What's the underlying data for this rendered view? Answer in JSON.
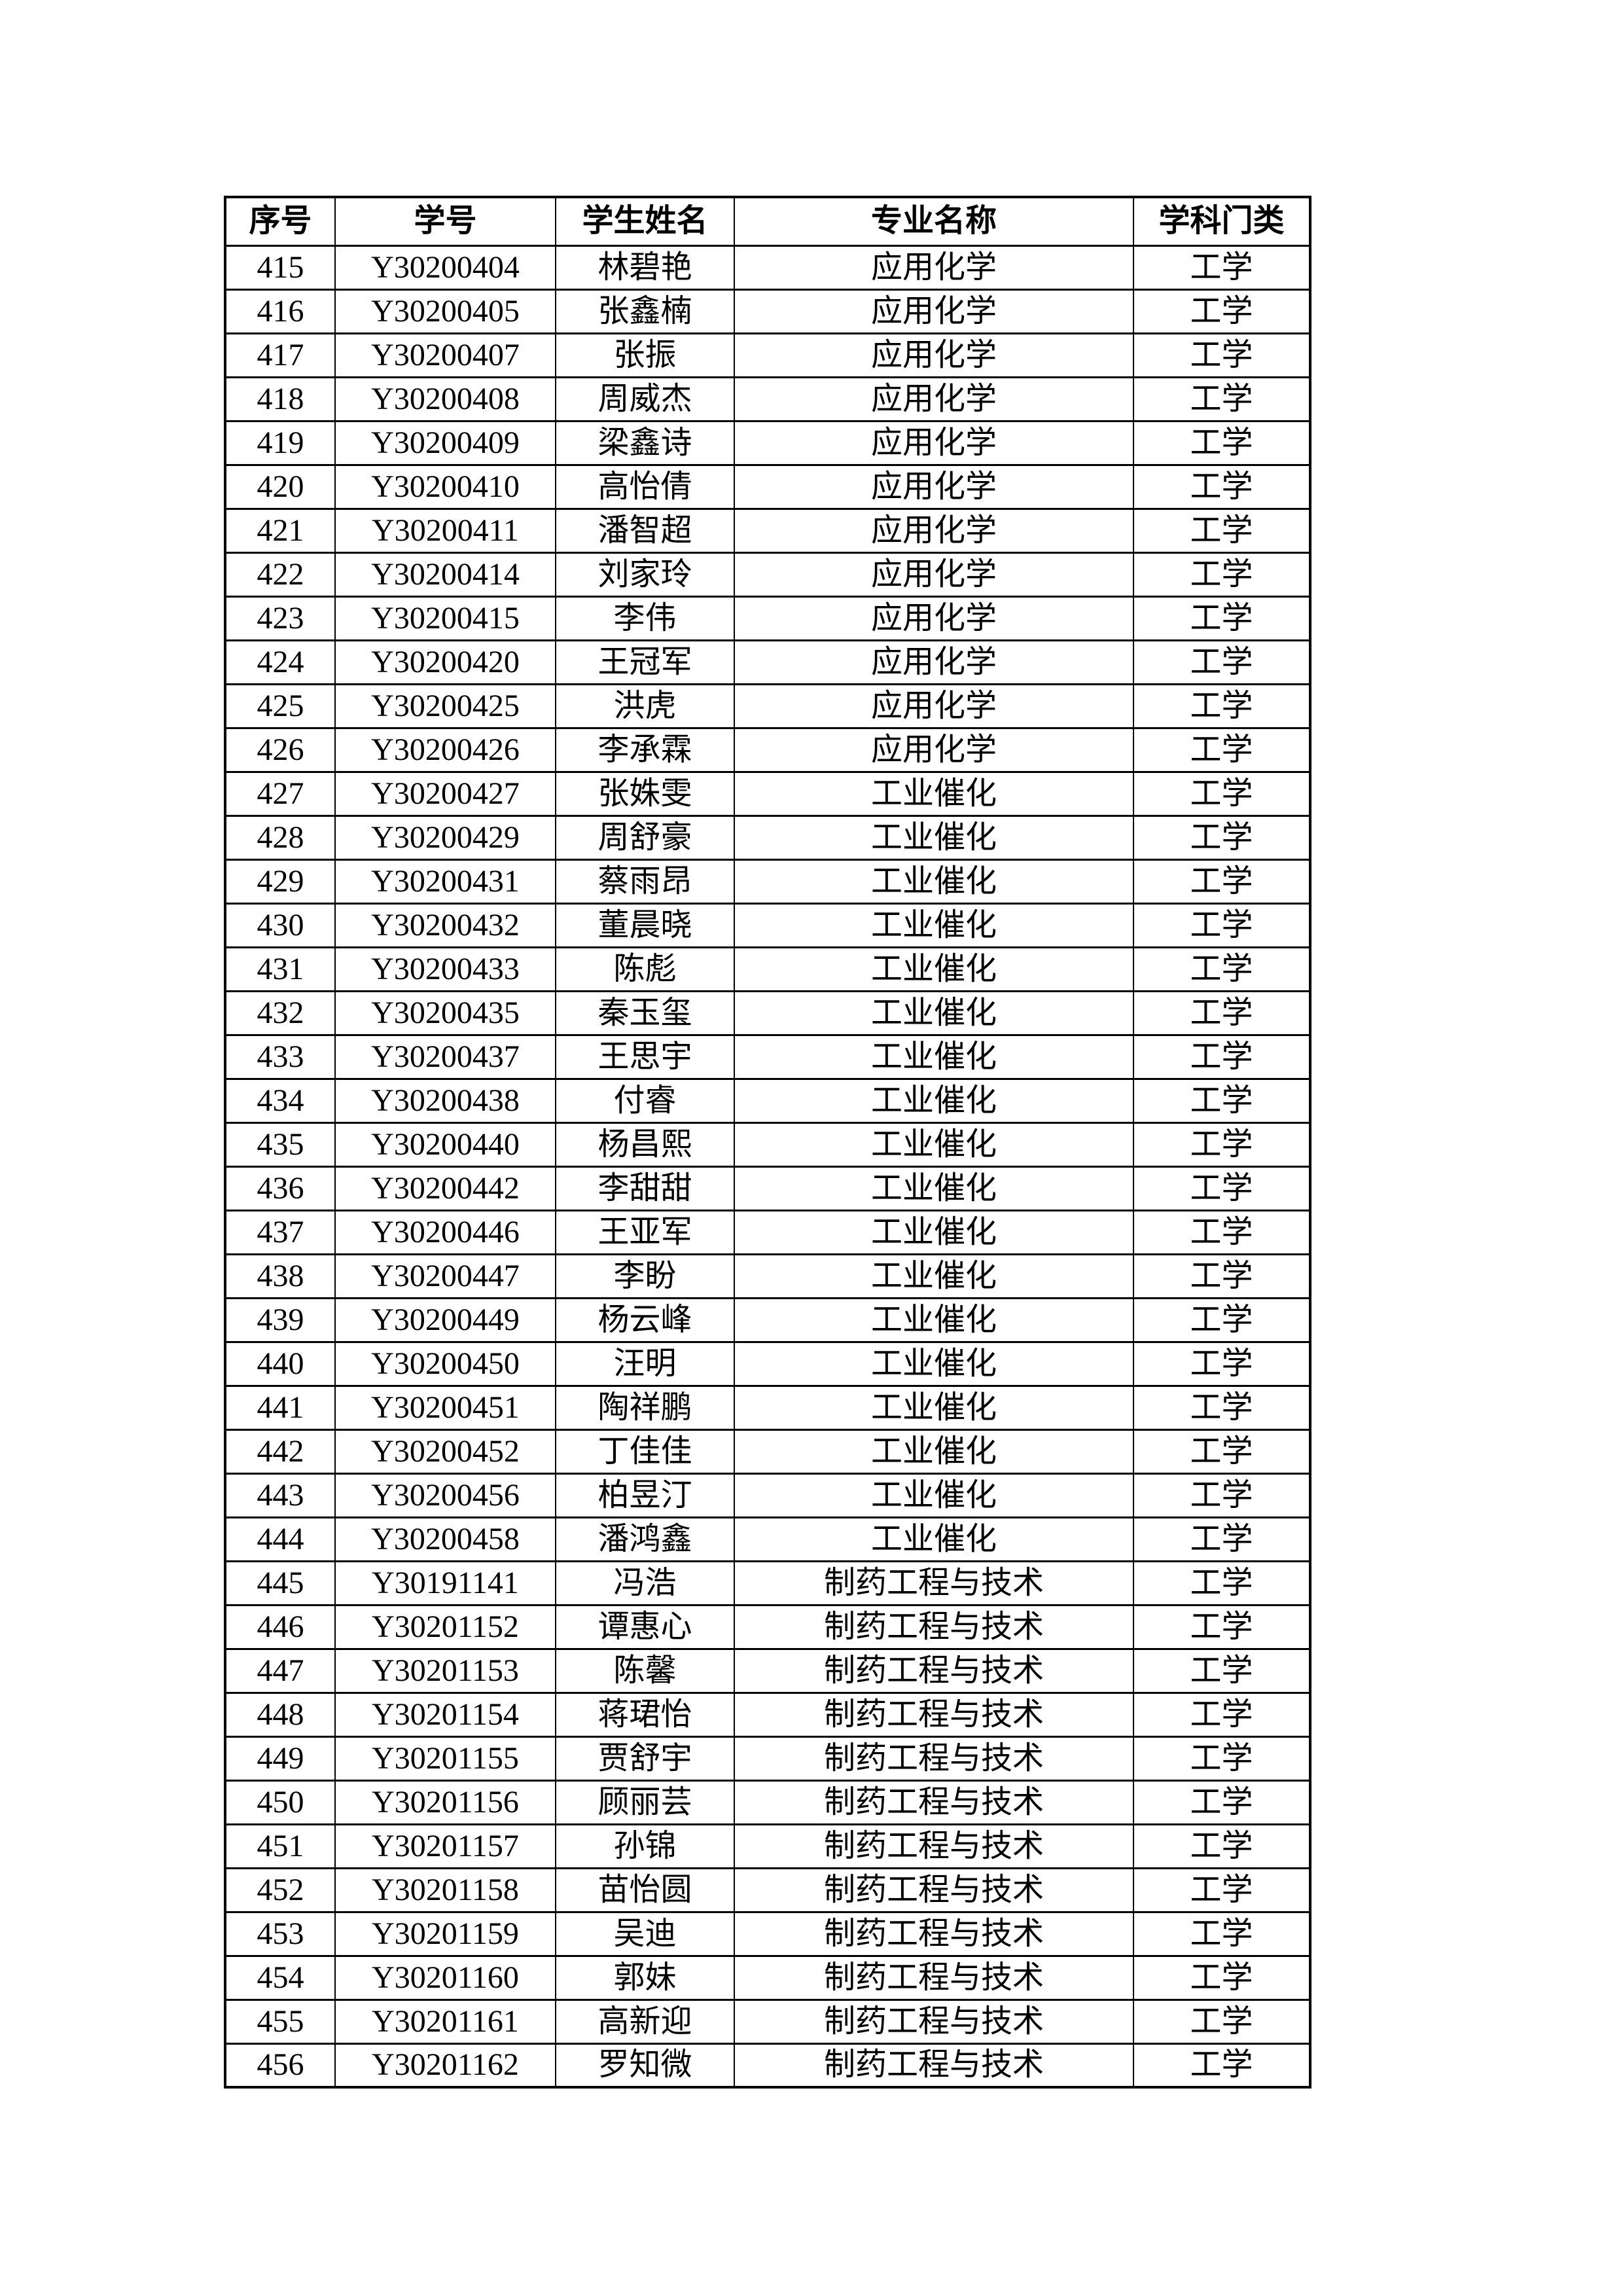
{
  "colors": {
    "page_background": "#ffffff",
    "text": "#000000",
    "border": "#000000"
  },
  "table": {
    "columns": [
      {
        "key": "index",
        "label": "序号"
      },
      {
        "key": "student_id",
        "label": "学号"
      },
      {
        "key": "name",
        "label": "学生姓名"
      },
      {
        "key": "major",
        "label": "专业名称"
      },
      {
        "key": "category",
        "label": "学科门类"
      }
    ],
    "rows": [
      [
        "415",
        "Y30200404",
        "林碧艳",
        "应用化学",
        "工学"
      ],
      [
        "416",
        "Y30200405",
        "张鑫楠",
        "应用化学",
        "工学"
      ],
      [
        "417",
        "Y30200407",
        "张振",
        "应用化学",
        "工学"
      ],
      [
        "418",
        "Y30200408",
        "周威杰",
        "应用化学",
        "工学"
      ],
      [
        "419",
        "Y30200409",
        "梁鑫诗",
        "应用化学",
        "工学"
      ],
      [
        "420",
        "Y30200410",
        "高怡倩",
        "应用化学",
        "工学"
      ],
      [
        "421",
        "Y30200411",
        "潘智超",
        "应用化学",
        "工学"
      ],
      [
        "422",
        "Y30200414",
        "刘家玲",
        "应用化学",
        "工学"
      ],
      [
        "423",
        "Y30200415",
        "李伟",
        "应用化学",
        "工学"
      ],
      [
        "424",
        "Y30200420",
        "王冠军",
        "应用化学",
        "工学"
      ],
      [
        "425",
        "Y30200425",
        "洪虎",
        "应用化学",
        "工学"
      ],
      [
        "426",
        "Y30200426",
        "李承霖",
        "应用化学",
        "工学"
      ],
      [
        "427",
        "Y30200427",
        "张姝雯",
        "工业催化",
        "工学"
      ],
      [
        "428",
        "Y30200429",
        "周舒豪",
        "工业催化",
        "工学"
      ],
      [
        "429",
        "Y30200431",
        "蔡雨昂",
        "工业催化",
        "工学"
      ],
      [
        "430",
        "Y30200432",
        "董晨晓",
        "工业催化",
        "工学"
      ],
      [
        "431",
        "Y30200433",
        "陈彪",
        "工业催化",
        "工学"
      ],
      [
        "432",
        "Y30200435",
        "秦玉玺",
        "工业催化",
        "工学"
      ],
      [
        "433",
        "Y30200437",
        "王思宇",
        "工业催化",
        "工学"
      ],
      [
        "434",
        "Y30200438",
        "付睿",
        "工业催化",
        "工学"
      ],
      [
        "435",
        "Y30200440",
        "杨昌熙",
        "工业催化",
        "工学"
      ],
      [
        "436",
        "Y30200442",
        "李甜甜",
        "工业催化",
        "工学"
      ],
      [
        "437",
        "Y30200446",
        "王亚军",
        "工业催化",
        "工学"
      ],
      [
        "438",
        "Y30200447",
        "李盼",
        "工业催化",
        "工学"
      ],
      [
        "439",
        "Y30200449",
        "杨云峰",
        "工业催化",
        "工学"
      ],
      [
        "440",
        "Y30200450",
        "汪明",
        "工业催化",
        "工学"
      ],
      [
        "441",
        "Y30200451",
        "陶祥鹏",
        "工业催化",
        "工学"
      ],
      [
        "442",
        "Y30200452",
        "丁佳佳",
        "工业催化",
        "工学"
      ],
      [
        "443",
        "Y30200456",
        "柏昱汀",
        "工业催化",
        "工学"
      ],
      [
        "444",
        "Y30200458",
        "潘鸿鑫",
        "工业催化",
        "工学"
      ],
      [
        "445",
        "Y30191141",
        "冯浩",
        "制药工程与技术",
        "工学"
      ],
      [
        "446",
        "Y30201152",
        "谭惠心",
        "制药工程与技术",
        "工学"
      ],
      [
        "447",
        "Y30201153",
        "陈馨",
        "制药工程与技术",
        "工学"
      ],
      [
        "448",
        "Y30201154",
        "蒋珺怡",
        "制药工程与技术",
        "工学"
      ],
      [
        "449",
        "Y30201155",
        "贾舒宇",
        "制药工程与技术",
        "工学"
      ],
      [
        "450",
        "Y30201156",
        "顾丽芸",
        "制药工程与技术",
        "工学"
      ],
      [
        "451",
        "Y30201157",
        "孙锦",
        "制药工程与技术",
        "工学"
      ],
      [
        "452",
        "Y30201158",
        "苗怡圆",
        "制药工程与技术",
        "工学"
      ],
      [
        "453",
        "Y30201159",
        "吴迪",
        "制药工程与技术",
        "工学"
      ],
      [
        "454",
        "Y30201160",
        "郭妹",
        "制药工程与技术",
        "工学"
      ],
      [
        "455",
        "Y30201161",
        "高新迎",
        "制药工程与技术",
        "工学"
      ],
      [
        "456",
        "Y30201162",
        "罗知微",
        "制药工程与技术",
        "工学"
      ]
    ]
  }
}
